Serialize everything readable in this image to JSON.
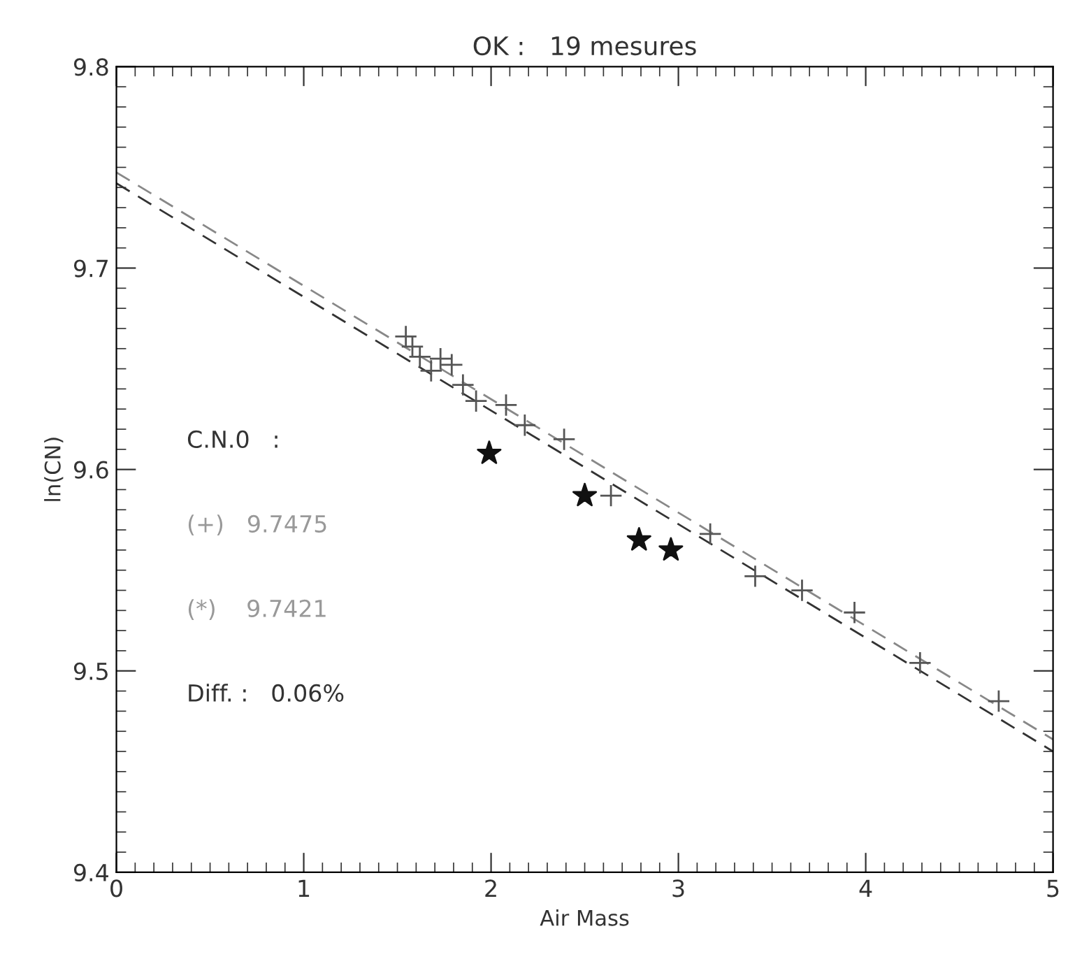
{
  "chart_data": {
    "type": "scatter",
    "title": "OK :   19 mesures",
    "xlabel": "Air Mass",
    "ylabel": "ln(CN)",
    "xlim": [
      0,
      5
    ],
    "ylim": [
      9.4,
      9.8
    ],
    "xticks": [
      0,
      1,
      2,
      3,
      4,
      5
    ],
    "yticks": [
      {
        "value": 9.4,
        "label": "9.4"
      },
      {
        "value": 9.5,
        "label": "9.5"
      },
      {
        "value": 9.6,
        "label": "9.6"
      },
      {
        "value": 9.7,
        "label": "9.7"
      },
      {
        "value": 9.8,
        "label": "9.8"
      }
    ],
    "grid": false,
    "legend": false,
    "series": [
      {
        "type": "scatter",
        "marker": "cross",
        "color": "#555555",
        "x": [
          1.545,
          1.58,
          1.62,
          1.68,
          1.73,
          1.79,
          1.85,
          1.92,
          2.08,
          2.18,
          2.39,
          2.64,
          3.17,
          3.41,
          3.66,
          3.94,
          4.29,
          4.71
        ],
        "values": [
          9.666,
          9.661,
          9.656,
          9.649,
          9.655,
          9.652,
          9.642,
          9.634,
          9.632,
          9.622,
          9.615,
          9.587,
          9.568,
          9.547,
          9.54,
          9.529,
          9.504,
          9.485
        ]
      },
      {
        "type": "scatter",
        "marker": "star",
        "color": "#111111",
        "x": [
          1.99,
          2.5,
          2.79,
          2.96
        ],
        "values": [
          9.608,
          9.587,
          9.565,
          9.56
        ]
      },
      {
        "type": "line",
        "line_style": "dashed",
        "color": "#888888",
        "x": [
          0,
          5
        ],
        "values": [
          9.7475,
          9.466
        ]
      },
      {
        "type": "line",
        "line_style": "dashed",
        "color": "#333333",
        "x": [
          0,
          5
        ],
        "values": [
          9.7421,
          9.46
        ]
      }
    ],
    "annotations": [
      "C.N.0   :",
      "(+)   9.7475",
      "(*)    9.7421",
      "Diff. :   0.06%"
    ]
  }
}
